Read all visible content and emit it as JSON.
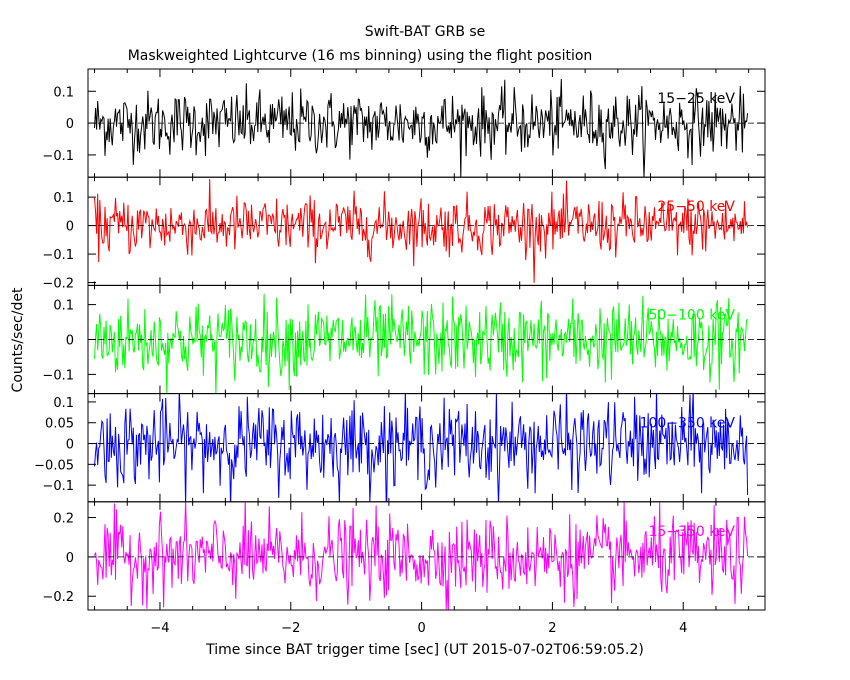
{
  "chart_data": {
    "type": "line",
    "title": "Swift-BAT GRB se",
    "subtitle": "Maskweighted Lightcurve (16 ms binning) using the flight position",
    "xlabel": "Time since BAT trigger time [sec] (UT 2015-07-02T06:59:05.2)",
    "ylabel": "Counts/sec/det",
    "xlim": [
      -5.1,
      5.25
    ],
    "xticks": [
      -4,
      -2,
      0,
      2,
      4
    ],
    "xtick_labels": [
      "−4",
      "−2",
      "0",
      "2",
      "4"
    ],
    "bin_width_s": 0.016,
    "t_start": -5.0,
    "t_end": 5.0,
    "panels": [
      {
        "name": "15-25 keV",
        "label": "15−25 keV",
        "color": "#000000",
        "ylim": [
          -0.17,
          0.17
        ],
        "sigma": 0.05,
        "yticks": [
          0.1,
          0,
          -0.1
        ],
        "ytick_labels": [
          "0.1",
          "0",
          "−0.1"
        ]
      },
      {
        "name": "25-50 keV",
        "label": "25−50 keV",
        "color": "#ff0000",
        "ylim": [
          -0.21,
          0.17
        ],
        "sigma": 0.05,
        "yticks": [
          0.1,
          0,
          -0.1,
          -0.2
        ],
        "ytick_labels": [
          "0.1",
          "0",
          "−0.1",
          "−0.2"
        ]
      },
      {
        "name": "50-100 keV",
        "label": "50−100 keV",
        "color": "#00ff00",
        "ylim": [
          -0.155,
          0.155
        ],
        "sigma": 0.055,
        "yticks": [
          0.1,
          0,
          -0.1
        ],
        "ytick_labels": [
          "0.1",
          "0",
          "−0.1"
        ]
      },
      {
        "name": "100-350 keV",
        "label": "100−350 keV",
        "color": "#0000ff",
        "ylim": [
          -0.14,
          0.12
        ],
        "sigma": 0.05,
        "yticks": [
          0.1,
          0.05,
          0,
          -0.05,
          -0.1
        ],
        "ytick_labels": [
          "0.1",
          "0.05",
          "0",
          "−0.05",
          "−0.1"
        ]
      },
      {
        "name": "15-350 keV",
        "label": "15−350 keV",
        "color": "#ff00ff",
        "ylim": [
          -0.27,
          0.28
        ],
        "sigma": 0.1,
        "yticks": [
          0.2,
          0,
          -0.2
        ],
        "ytick_labels": [
          "0.2",
          "0",
          "−0.2"
        ]
      }
    ]
  }
}
